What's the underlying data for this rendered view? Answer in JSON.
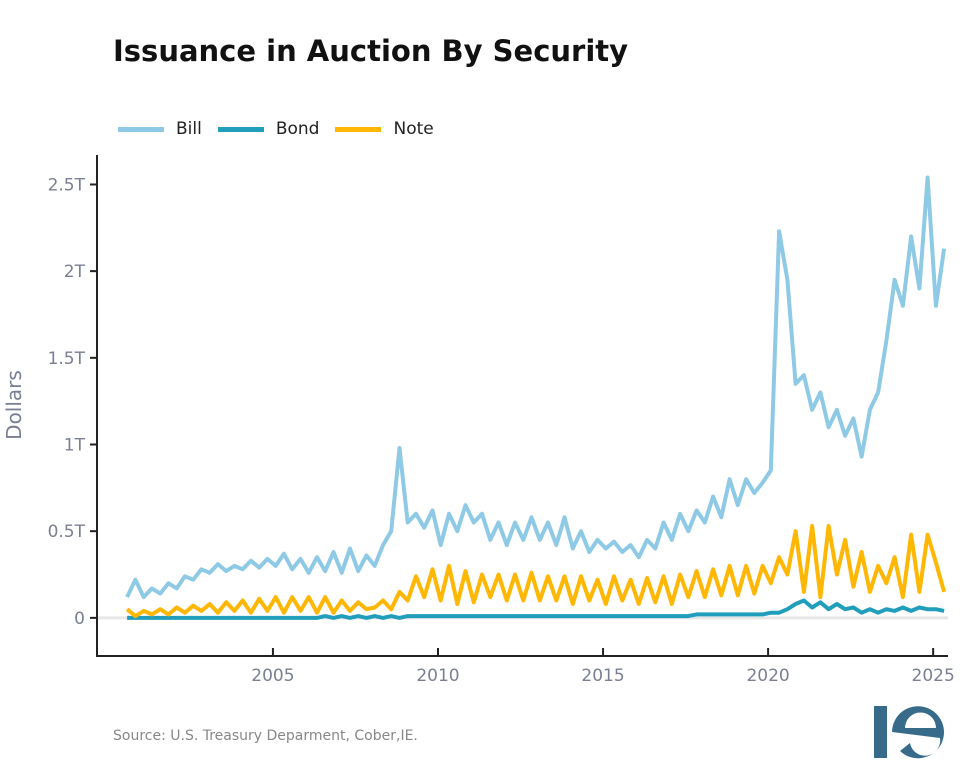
{
  "chart_data": {
    "type": "line",
    "title": "Issuance in Auction By Security",
    "ylabel": "Dollars",
    "xlabel": "",
    "x_ticks": [
      "2005",
      "2010",
      "2015",
      "2020",
      "2025"
    ],
    "x_tick_values": [
      2005,
      2010,
      2015,
      2020,
      2025
    ],
    "y_ticks": [
      "0",
      "0.5T",
      "1T",
      "1.5T",
      "2T",
      "2.5T"
    ],
    "y_tick_values": [
      0,
      0.5,
      1,
      1.5,
      2,
      2.5
    ],
    "y_unit": "trillions of dollars",
    "xlim": [
      1999.67,
      2025.45
    ],
    "ylim": [
      -0.22,
      2.67
    ],
    "grid": false,
    "zero_line": true,
    "legend_position": "top-left",
    "x": [
      "2000-08",
      "2000-11",
      "2001-02",
      "2001-05",
      "2001-08",
      "2001-11",
      "2002-02",
      "2002-05",
      "2002-08",
      "2002-11",
      "2003-02",
      "2003-05",
      "2003-08",
      "2003-11",
      "2004-02",
      "2004-05",
      "2004-08",
      "2004-11",
      "2005-02",
      "2005-05",
      "2005-08",
      "2005-11",
      "2006-02",
      "2006-05",
      "2006-08",
      "2006-11",
      "2007-02",
      "2007-05",
      "2007-08",
      "2007-11",
      "2008-02",
      "2008-05",
      "2008-08",
      "2008-11",
      "2009-02",
      "2009-05",
      "2009-08",
      "2009-11",
      "2010-02",
      "2010-05",
      "2010-08",
      "2010-11",
      "2011-02",
      "2011-05",
      "2011-08",
      "2011-11",
      "2012-02",
      "2012-05",
      "2012-08",
      "2012-11",
      "2013-02",
      "2013-05",
      "2013-08",
      "2013-11",
      "2014-02",
      "2014-05",
      "2014-08",
      "2014-11",
      "2015-02",
      "2015-05",
      "2015-08",
      "2015-11",
      "2016-02",
      "2016-05",
      "2016-08",
      "2016-11",
      "2017-02",
      "2017-05",
      "2017-08",
      "2017-11",
      "2018-02",
      "2018-05",
      "2018-08",
      "2018-11",
      "2019-02",
      "2019-05",
      "2019-08",
      "2019-11",
      "2020-02",
      "2020-05",
      "2020-08",
      "2020-11",
      "2021-02",
      "2021-05",
      "2021-08",
      "2021-11",
      "2022-02",
      "2022-05",
      "2022-08",
      "2022-11",
      "2023-02",
      "2023-05",
      "2023-08",
      "2023-11",
      "2024-02",
      "2024-05",
      "2024-08",
      "2024-11",
      "2025-02",
      "2025-05"
    ],
    "series": [
      {
        "name": "Bill",
        "color": "#8ecae6",
        "values": [
          0.12,
          0.22,
          0.12,
          0.17,
          0.14,
          0.2,
          0.17,
          0.24,
          0.22,
          0.28,
          0.26,
          0.31,
          0.27,
          0.3,
          0.28,
          0.33,
          0.29,
          0.34,
          0.3,
          0.37,
          0.28,
          0.34,
          0.26,
          0.35,
          0.27,
          0.38,
          0.26,
          0.4,
          0.27,
          0.36,
          0.3,
          0.42,
          0.5,
          0.98,
          0.55,
          0.6,
          0.52,
          0.62,
          0.42,
          0.6,
          0.5,
          0.65,
          0.55,
          0.6,
          0.45,
          0.55,
          0.42,
          0.55,
          0.45,
          0.58,
          0.45,
          0.55,
          0.42,
          0.58,
          0.4,
          0.5,
          0.38,
          0.45,
          0.4,
          0.44,
          0.38,
          0.42,
          0.35,
          0.45,
          0.4,
          0.55,
          0.45,
          0.6,
          0.5,
          0.62,
          0.55,
          0.7,
          0.58,
          0.8,
          0.65,
          0.8,
          0.72,
          0.78,
          0.85,
          2.23,
          1.95,
          1.35,
          1.4,
          1.2,
          1.3,
          1.1,
          1.2,
          1.05,
          1.15,
          0.93,
          1.2,
          1.3,
          1.6,
          1.95,
          1.8,
          2.2,
          1.9,
          2.54,
          1.8,
          2.13
        ]
      },
      {
        "name": "Bond",
        "color": "#219ebc",
        "values": [
          0.0,
          0.0,
          0.0,
          0.0,
          0.0,
          0.0,
          0.0,
          0.0,
          0.0,
          0.0,
          0.0,
          0.0,
          0.0,
          0.0,
          0.0,
          0.0,
          0.0,
          0.0,
          0.0,
          0.0,
          0.0,
          0.0,
          0.0,
          0.0,
          0.01,
          0.0,
          0.01,
          0.0,
          0.01,
          0.0,
          0.01,
          0.0,
          0.01,
          0.0,
          0.01,
          0.01,
          0.01,
          0.01,
          0.01,
          0.01,
          0.01,
          0.01,
          0.01,
          0.01,
          0.01,
          0.01,
          0.01,
          0.01,
          0.01,
          0.01,
          0.01,
          0.01,
          0.01,
          0.01,
          0.01,
          0.01,
          0.01,
          0.01,
          0.01,
          0.01,
          0.01,
          0.01,
          0.01,
          0.01,
          0.01,
          0.01,
          0.01,
          0.01,
          0.01,
          0.02,
          0.02,
          0.02,
          0.02,
          0.02,
          0.02,
          0.02,
          0.02,
          0.02,
          0.03,
          0.03,
          0.05,
          0.08,
          0.1,
          0.06,
          0.09,
          0.05,
          0.08,
          0.05,
          0.06,
          0.03,
          0.05,
          0.03,
          0.05,
          0.04,
          0.06,
          0.04,
          0.06,
          0.05,
          0.05,
          0.04
        ]
      },
      {
        "name": "Note",
        "color": "#ffb703",
        "values": [
          0.05,
          0.01,
          0.04,
          0.02,
          0.05,
          0.02,
          0.06,
          0.03,
          0.07,
          0.04,
          0.08,
          0.03,
          0.09,
          0.04,
          0.1,
          0.03,
          0.11,
          0.04,
          0.12,
          0.03,
          0.12,
          0.04,
          0.12,
          0.03,
          0.12,
          0.03,
          0.1,
          0.04,
          0.09,
          0.05,
          0.06,
          0.1,
          0.05,
          0.15,
          0.1,
          0.24,
          0.12,
          0.28,
          0.1,
          0.3,
          0.08,
          0.27,
          0.09,
          0.25,
          0.12,
          0.25,
          0.1,
          0.25,
          0.1,
          0.26,
          0.1,
          0.24,
          0.1,
          0.24,
          0.08,
          0.24,
          0.1,
          0.22,
          0.08,
          0.24,
          0.1,
          0.22,
          0.08,
          0.23,
          0.09,
          0.24,
          0.08,
          0.25,
          0.12,
          0.27,
          0.12,
          0.28,
          0.13,
          0.3,
          0.13,
          0.3,
          0.14,
          0.3,
          0.2,
          0.35,
          0.25,
          0.5,
          0.15,
          0.53,
          0.12,
          0.53,
          0.25,
          0.45,
          0.18,
          0.38,
          0.15,
          0.3,
          0.2,
          0.35,
          0.12,
          0.48,
          0.15,
          0.48,
          0.32,
          0.15
        ]
      }
    ]
  },
  "source": "Source: U.S. Treasury Deparment, Cober,IE.",
  "logo": {
    "text": "IE",
    "color": "#386b8a"
  }
}
